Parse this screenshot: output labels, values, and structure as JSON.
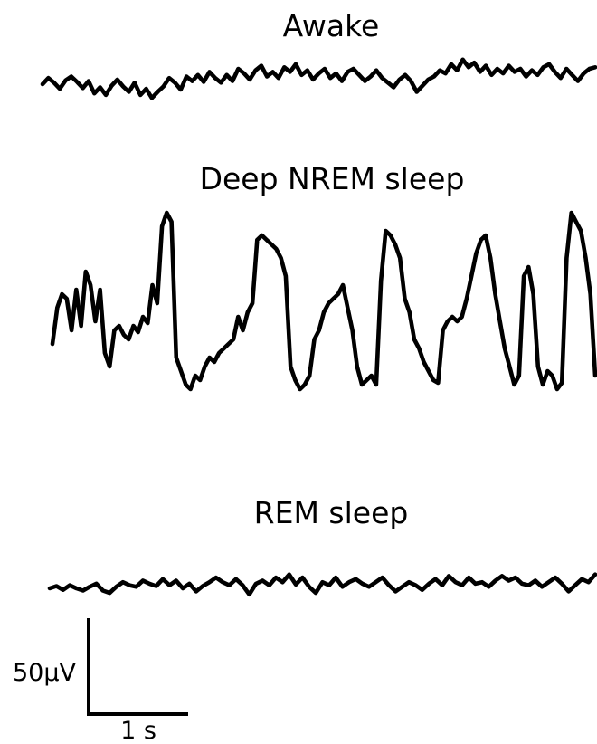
{
  "chart_data": {
    "type": "line",
    "series": [
      {
        "name": "Awake",
        "values": [
          0,
          8,
          2,
          -6,
          5,
          10,
          3,
          -5,
          4,
          -12,
          -4,
          -14,
          -2,
          6,
          -3,
          -10,
          2,
          -14,
          -6,
          -18,
          -10,
          -3,
          8,
          2,
          -7,
          10,
          4,
          12,
          3,
          16,
          8,
          2,
          12,
          4,
          20,
          14,
          6,
          18,
          24,
          10,
          16,
          8,
          22,
          16,
          26,
          12,
          18,
          6,
          14,
          20,
          8,
          14,
          4,
          16,
          20,
          12,
          4,
          10,
          18,
          8,
          2,
          -4,
          6,
          12,
          4,
          -10,
          -2,
          6,
          10,
          18,
          14,
          26,
          18,
          32,
          22,
          28,
          16,
          24,
          12,
          20,
          14,
          24,
          16,
          20,
          10,
          18,
          12,
          22,
          26,
          16,
          8,
          20,
          12,
          4,
          14,
          20,
          22
        ]
      },
      {
        "name": "Deep NREM sleep",
        "values": [
          -35,
          5,
          20,
          15,
          -20,
          25,
          -15,
          45,
          30,
          -10,
          25,
          -45,
          -60,
          -20,
          -15,
          -25,
          -30,
          -15,
          -22,
          -5,
          -12,
          30,
          10,
          95,
          110,
          100,
          -50,
          -65,
          -80,
          -85,
          -70,
          -75,
          -60,
          -50,
          -55,
          -45,
          -40,
          -35,
          -30,
          -5,
          -20,
          0,
          10,
          80,
          85,
          80,
          75,
          70,
          60,
          40,
          -60,
          -75,
          -85,
          -80,
          -70,
          -30,
          -20,
          0,
          10,
          15,
          20,
          30,
          5,
          -20,
          -60,
          -80,
          -75,
          -70,
          -80,
          35,
          90,
          85,
          75,
          60,
          15,
          0,
          -30,
          -40,
          -55,
          -65,
          -75,
          -78,
          -20,
          -10,
          -5,
          -10,
          -5,
          15,
          40,
          65,
          80,
          85,
          60,
          20,
          -10,
          -40,
          -60,
          -80,
          -70,
          40,
          50,
          20,
          -60,
          -80,
          -65,
          -70,
          -85,
          -78,
          60,
          110,
          100,
          90,
          60,
          20,
          -70
        ]
      },
      {
        "name": "REM sleep",
        "values": [
          0,
          3,
          -2,
          4,
          0,
          -3,
          2,
          6,
          -3,
          -6,
          2,
          8,
          4,
          2,
          10,
          6,
          3,
          12,
          4,
          10,
          0,
          6,
          -4,
          3,
          8,
          14,
          8,
          4,
          12,
          4,
          -8,
          6,
          10,
          4,
          14,
          8,
          18,
          5,
          14,
          2,
          -6,
          8,
          4,
          14,
          2,
          8,
          12,
          6,
          2,
          8,
          14,
          4,
          -4,
          2,
          8,
          4,
          -2,
          6,
          12,
          4,
          16,
          8,
          4,
          14,
          6,
          8,
          2,
          10,
          16,
          10,
          14,
          6,
          4,
          10,
          2,
          8,
          14,
          6,
          -4,
          4,
          12,
          8,
          18
        ]
      }
    ],
    "scale_bar": {
      "amplitude_label": "50μV",
      "time_label": "1 s"
    }
  }
}
